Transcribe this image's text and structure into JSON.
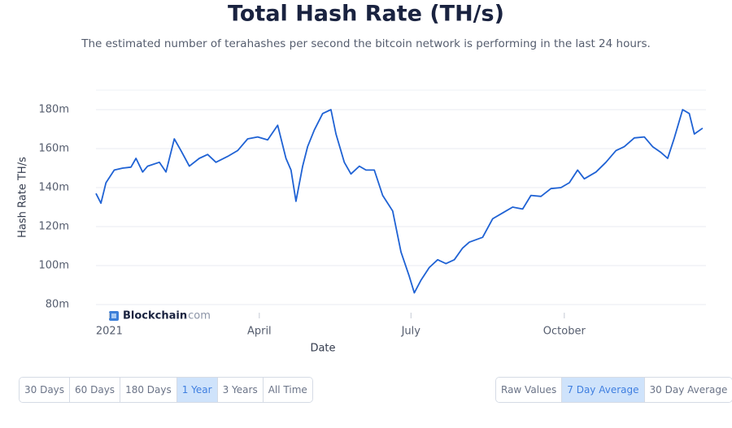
{
  "chart_data": {
    "type": "line",
    "title": "Total Hash Rate (TH/s)",
    "subtitle": "The estimated number of terahashes per second the bitcoin network is performing in the last 24 hours.",
    "x_label": "Date",
    "y_label": "Hash Rate TH/s",
    "x": [
      -8,
      -5,
      -2,
      3,
      8,
      13,
      16,
      20,
      23,
      30,
      34,
      39,
      43,
      48,
      54,
      59,
      64,
      71,
      77,
      83,
      89,
      95,
      101,
      106,
      109,
      112,
      116,
      119,
      123,
      128,
      133,
      136,
      141,
      145,
      150,
      154,
      159,
      164,
      170,
      175,
      180,
      183,
      187,
      192,
      197,
      202,
      207,
      212,
      216,
      224,
      230,
      236,
      242,
      248,
      253,
      259,
      265,
      271,
      276,
      281,
      285,
      292,
      298,
      304,
      309,
      315,
      321,
      326,
      331,
      335,
      339,
      344,
      348,
      351,
      356
    ],
    "series": [
      {
        "name": "Hash Rate",
        "color": "#1f62d4",
        "values": [
          137,
          132,
          142.5,
          149,
          150,
          150.5,
          155,
          148,
          151,
          153,
          148,
          165,
          159,
          151,
          155,
          157,
          153,
          156,
          159,
          165,
          166,
          164.5,
          172,
          155,
          149,
          133,
          151,
          161,
          169.5,
          178,
          180,
          167.5,
          153,
          147,
          151,
          149,
          149,
          136,
          128,
          107,
          94.5,
          86,
          92.5,
          99,
          103,
          101,
          103,
          109,
          112,
          114.5,
          124,
          127,
          130,
          129,
          136,
          135.5,
          139.5,
          140,
          142.5,
          149,
          144.5,
          148,
          153,
          159,
          161,
          165.5,
          166,
          161,
          158,
          155,
          165.5,
          180,
          178,
          167.5,
          170.5
        ]
      }
    ],
    "xlim": [
      -8,
      358
    ],
    "xticks": [
      {
        "value": 0,
        "label": "2021"
      },
      {
        "value": 90,
        "label": "April"
      },
      {
        "value": 181,
        "label": "July"
      },
      {
        "value": 273,
        "label": "October"
      }
    ],
    "ylim": [
      80,
      190
    ],
    "yticks": [
      {
        "value": 80,
        "label": "80m"
      },
      {
        "value": 100,
        "label": "100m"
      },
      {
        "value": 120,
        "label": "120m"
      },
      {
        "value": 140,
        "label": "140m"
      },
      {
        "value": 160,
        "label": "160m"
      },
      {
        "value": 180,
        "label": "180m"
      }
    ],
    "grid": true
  },
  "watermark": [
    "Blockchain",
    ".com"
  ],
  "timespan_buttons": [
    "30 Days",
    "60 Days",
    "180 Days",
    "1 Year",
    "3 Years",
    "All Time"
  ],
  "active_timespan": 3,
  "average_buttons": [
    "Raw Values",
    "7 Day Average",
    "30 Day Average"
  ],
  "active_average": 1
}
